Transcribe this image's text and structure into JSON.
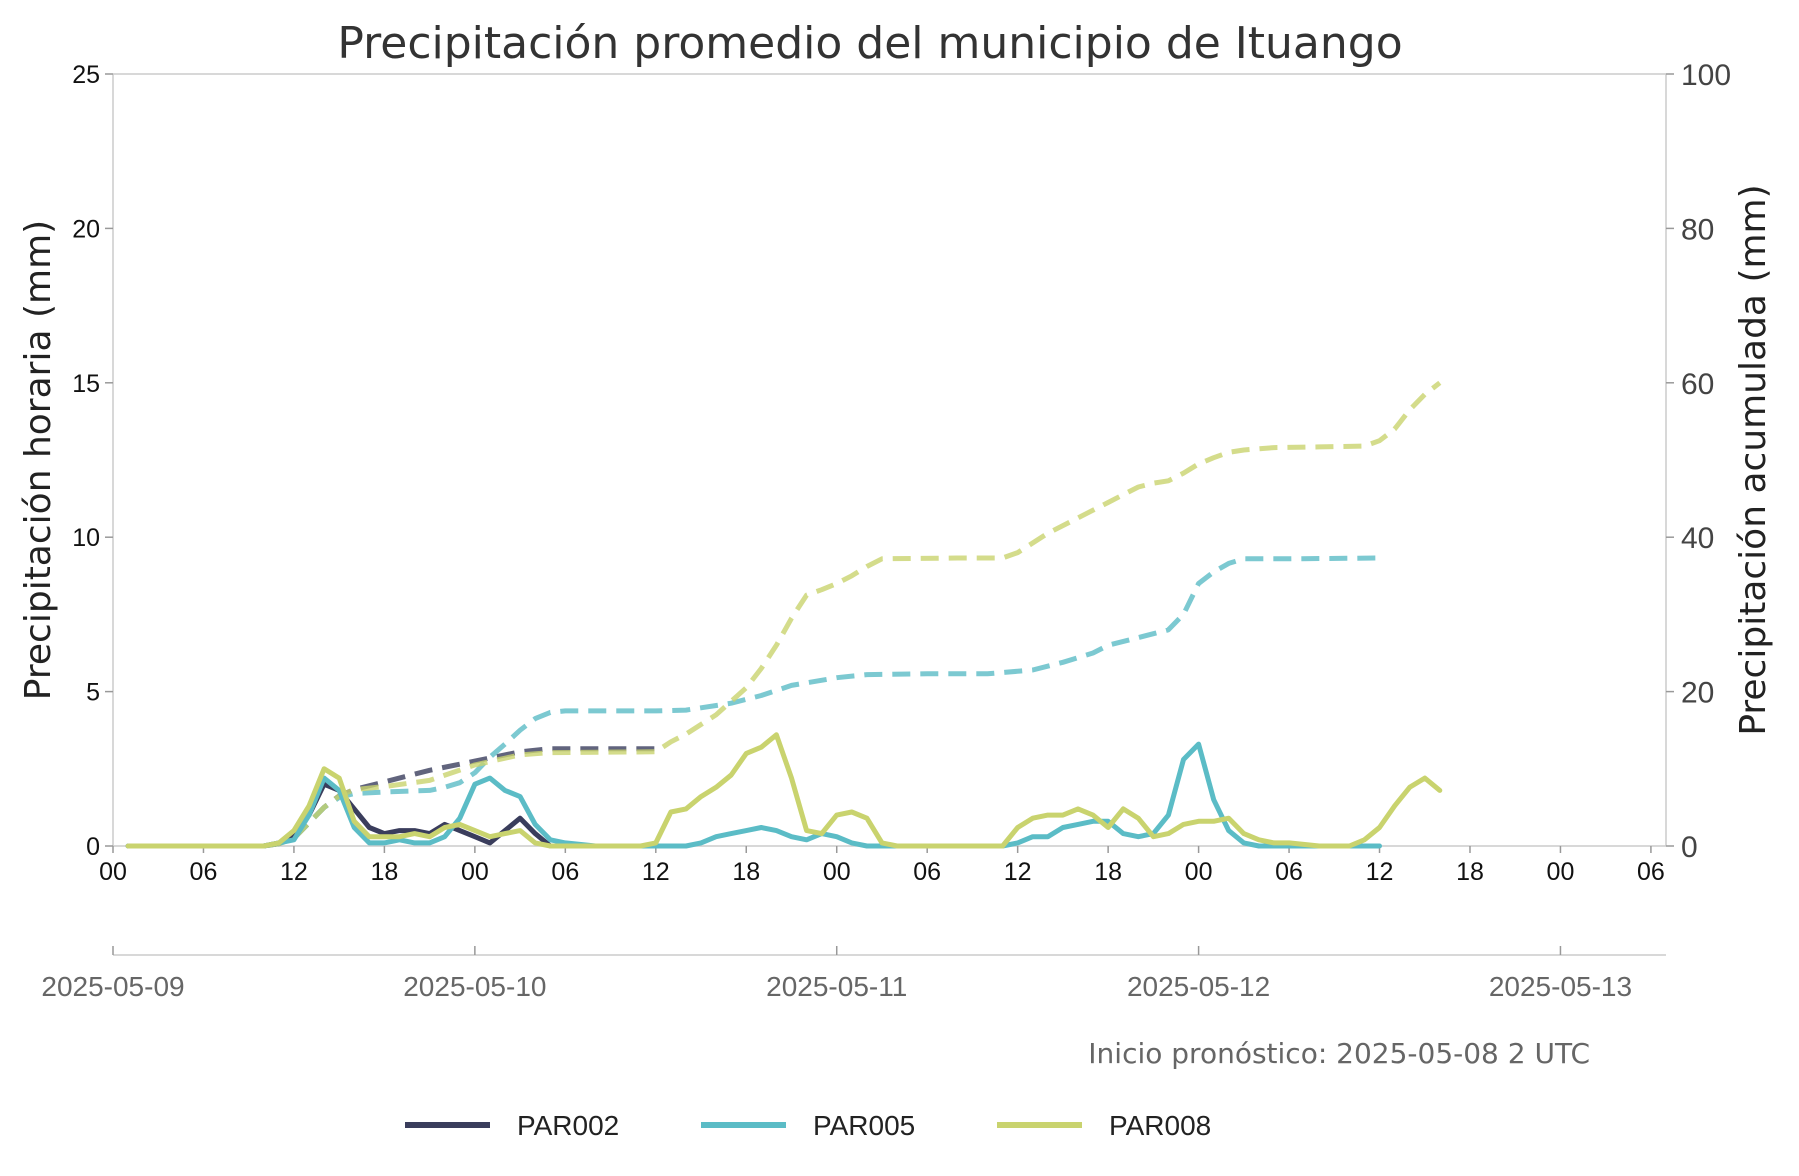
{
  "chart_data": {
    "type": "line",
    "title": "Precipitación promedio del municipio de Ituango",
    "ylabel_left": "Precipitación horaria (mm)",
    "ylabel_right": "Precipitación acumulada (mm)",
    "ylim_left": [
      0,
      25
    ],
    "ylim_right": [
      0,
      100
    ],
    "yticks_left": [
      "0",
      "5",
      "10",
      "15",
      "20",
      "25"
    ],
    "yticks_right": [
      "0",
      "20",
      "40",
      "60",
      "80",
      "100"
    ],
    "x_hour_ticks": [
      "00",
      "06",
      "12",
      "18",
      "00",
      "06",
      "12",
      "18",
      "00",
      "06",
      "12",
      "18",
      "00",
      "06",
      "12",
      "18",
      "00",
      "06"
    ],
    "x_date_ticks": [
      "2025-05-09",
      "2025-05-10",
      "2025-05-11",
      "2025-05-12",
      "2025-05-13"
    ],
    "xlim_hours": [
      0,
      103
    ],
    "x_unit": "hours since 2025-05-09 00",
    "annotation": "Inicio pronóstico: 2025-05-08 2 UTC",
    "grid": false,
    "legend_position": "bottom",
    "series": [
      {
        "name": "PAR002",
        "color": "#3a3d5c",
        "hourly": [
          [
            1,
            0
          ],
          [
            4,
            0
          ],
          [
            7,
            0
          ],
          [
            10,
            0
          ],
          [
            11,
            0.1
          ],
          [
            12,
            0.3
          ],
          [
            13,
            1
          ],
          [
            14,
            2
          ],
          [
            15,
            1.8
          ],
          [
            16,
            1.2
          ],
          [
            17,
            0.6
          ],
          [
            18,
            0.4
          ],
          [
            19,
            0.5
          ],
          [
            20,
            0.5
          ],
          [
            21,
            0.4
          ],
          [
            22,
            0.7
          ],
          [
            23,
            0.5
          ],
          [
            24,
            0.3
          ],
          [
            25,
            0.1
          ],
          [
            26,
            0.5
          ],
          [
            27,
            0.9
          ],
          [
            28,
            0.4
          ],
          [
            29,
            0
          ],
          [
            30,
            0
          ],
          [
            33,
            0
          ],
          [
            36,
            0
          ]
        ],
        "cumulative": [
          [
            1,
            0
          ],
          [
            10,
            0
          ],
          [
            11,
            0.3
          ],
          [
            12,
            1
          ],
          [
            13,
            3
          ],
          [
            14,
            5
          ],
          [
            15,
            6.5
          ],
          [
            16,
            7.3
          ],
          [
            18,
            8.3
          ],
          [
            21,
            9.8
          ],
          [
            24,
            11
          ],
          [
            27,
            12.2
          ],
          [
            29,
            12.6
          ],
          [
            36,
            12.6
          ]
        ]
      },
      {
        "name": "PAR005",
        "color": "#5bbcc6",
        "hourly": [
          [
            1,
            0
          ],
          [
            4,
            0
          ],
          [
            7,
            0
          ],
          [
            10,
            0
          ],
          [
            11,
            0.1
          ],
          [
            12,
            0.2
          ],
          [
            13,
            1
          ],
          [
            14,
            2.2
          ],
          [
            15,
            1.8
          ],
          [
            16,
            0.6
          ],
          [
            17,
            0.1
          ],
          [
            18,
            0.1
          ],
          [
            19,
            0.2
          ],
          [
            20,
            0.1
          ],
          [
            21,
            0.1
          ],
          [
            22,
            0.3
          ],
          [
            23,
            0.9
          ],
          [
            24,
            2
          ],
          [
            25,
            2.2
          ],
          [
            26,
            1.8
          ],
          [
            27,
            1.6
          ],
          [
            28,
            0.7
          ],
          [
            29,
            0.2
          ],
          [
            30,
            0.1
          ],
          [
            32,
            0
          ],
          [
            36,
            0
          ],
          [
            37,
            0
          ],
          [
            38,
            0
          ],
          [
            39,
            0.1
          ],
          [
            40,
            0.3
          ],
          [
            41,
            0.4
          ],
          [
            42,
            0.5
          ],
          [
            43,
            0.6
          ],
          [
            44,
            0.5
          ],
          [
            45,
            0.3
          ],
          [
            46,
            0.2
          ],
          [
            47,
            0.4
          ],
          [
            48,
            0.3
          ],
          [
            49,
            0.1
          ],
          [
            50,
            0
          ],
          [
            56,
            0
          ],
          [
            59,
            0
          ],
          [
            60,
            0.1
          ],
          [
            61,
            0.3
          ],
          [
            62,
            0.3
          ],
          [
            63,
            0.6
          ],
          [
            64,
            0.7
          ],
          [
            65,
            0.8
          ],
          [
            66,
            0.8
          ],
          [
            67,
            0.4
          ],
          [
            68,
            0.3
          ],
          [
            69,
            0.4
          ],
          [
            70,
            1
          ],
          [
            71,
            2.8
          ],
          [
            72,
            3.3
          ],
          [
            73,
            1.5
          ],
          [
            74,
            0.5
          ],
          [
            75,
            0.1
          ],
          [
            76,
            0
          ],
          [
            84,
            0
          ]
        ],
        "cumulative": [
          [
            1,
            0
          ],
          [
            10,
            0
          ],
          [
            11,
            0.3
          ],
          [
            12,
            1
          ],
          [
            13,
            3
          ],
          [
            14,
            5
          ],
          [
            15,
            6.3
          ],
          [
            16,
            6.8
          ],
          [
            18,
            7
          ],
          [
            21,
            7.2
          ],
          [
            22,
            7.6
          ],
          [
            23,
            8.2
          ],
          [
            24,
            9.5
          ],
          [
            25,
            11.5
          ],
          [
            26,
            13.2
          ],
          [
            27,
            15
          ],
          [
            28,
            16.5
          ],
          [
            29,
            17.3
          ],
          [
            30,
            17.5
          ],
          [
            36,
            17.5
          ],
          [
            38,
            17.6
          ],
          [
            41,
            18.5
          ],
          [
            43,
            19.5
          ],
          [
            45,
            20.8
          ],
          [
            48,
            21.8
          ],
          [
            50,
            22.2
          ],
          [
            54,
            22.3
          ],
          [
            58,
            22.3
          ],
          [
            61,
            22.8
          ],
          [
            63,
            23.8
          ],
          [
            65,
            25
          ],
          [
            66,
            26
          ],
          [
            68,
            27
          ],
          [
            70,
            28
          ],
          [
            71,
            30
          ],
          [
            72,
            34
          ],
          [
            73,
            35.5
          ],
          [
            74,
            36.6
          ],
          [
            75,
            37.2
          ],
          [
            78,
            37.2
          ],
          [
            84,
            37.3
          ]
        ]
      },
      {
        "name": "PAR008",
        "color": "#c9d36e",
        "hourly": [
          [
            1,
            0
          ],
          [
            4,
            0
          ],
          [
            7,
            0
          ],
          [
            10,
            0
          ],
          [
            11,
            0.1
          ],
          [
            12,
            0.5
          ],
          [
            13,
            1.3
          ],
          [
            14,
            2.5
          ],
          [
            15,
            2.2
          ],
          [
            16,
            0.8
          ],
          [
            17,
            0.3
          ],
          [
            18,
            0.3
          ],
          [
            19,
            0.3
          ],
          [
            20,
            0.4
          ],
          [
            21,
            0.3
          ],
          [
            22,
            0.6
          ],
          [
            23,
            0.7
          ],
          [
            24,
            0.5
          ],
          [
            25,
            0.3
          ],
          [
            26,
            0.4
          ],
          [
            27,
            0.5
          ],
          [
            28,
            0.1
          ],
          [
            29,
            0
          ],
          [
            30,
            0
          ],
          [
            33,
            0
          ],
          [
            35,
            0
          ],
          [
            36,
            0.1
          ],
          [
            37,
            1.1
          ],
          [
            38,
            1.2
          ],
          [
            39,
            1.6
          ],
          [
            40,
            1.9
          ],
          [
            41,
            2.3
          ],
          [
            42,
            3
          ],
          [
            43,
            3.2
          ],
          [
            44,
            3.6
          ],
          [
            45,
            2.2
          ],
          [
            46,
            0.5
          ],
          [
            47,
            0.4
          ],
          [
            48,
            1
          ],
          [
            49,
            1.1
          ],
          [
            50,
            0.9
          ],
          [
            51,
            0.1
          ],
          [
            52,
            0
          ],
          [
            56,
            0
          ],
          [
            59,
            0
          ],
          [
            60,
            0.6
          ],
          [
            61,
            0.9
          ],
          [
            62,
            1
          ],
          [
            63,
            1
          ],
          [
            64,
            1.2
          ],
          [
            65,
            1
          ],
          [
            66,
            0.6
          ],
          [
            67,
            1.2
          ],
          [
            68,
            0.9
          ],
          [
            69,
            0.3
          ],
          [
            70,
            0.4
          ],
          [
            71,
            0.7
          ],
          [
            72,
            0.8
          ],
          [
            73,
            0.8
          ],
          [
            74,
            0.9
          ],
          [
            75,
            0.4
          ],
          [
            76,
            0.2
          ],
          [
            77,
            0.1
          ],
          [
            78,
            0.1
          ],
          [
            80,
            0
          ],
          [
            82,
            0
          ],
          [
            83,
            0.2
          ],
          [
            84,
            0.6
          ],
          [
            85,
            1.3
          ],
          [
            86,
            1.9
          ],
          [
            87,
            2.2
          ],
          [
            88,
            1.8
          ]
        ],
        "cumulative": [
          [
            1,
            0
          ],
          [
            10,
            0
          ],
          [
            11,
            0.3
          ],
          [
            12,
            1
          ],
          [
            13,
            3
          ],
          [
            14,
            5
          ],
          [
            15,
            6.5
          ],
          [
            16,
            7.3
          ],
          [
            18,
            7.7
          ],
          [
            21,
            8.5
          ],
          [
            24,
            10.5
          ],
          [
            27,
            11.8
          ],
          [
            29,
            12.1
          ],
          [
            36,
            12.2
          ],
          [
            37,
            13.5
          ],
          [
            38,
            14.5
          ],
          [
            40,
            17
          ],
          [
            42,
            20.5
          ],
          [
            43,
            23
          ],
          [
            44,
            26
          ],
          [
            45,
            29.5
          ],
          [
            46,
            32.5
          ],
          [
            47,
            33.2
          ],
          [
            48,
            34
          ],
          [
            49,
            35
          ],
          [
            50,
            36.2
          ],
          [
            51,
            37.2
          ],
          [
            56,
            37.3
          ],
          [
            59,
            37.3
          ],
          [
            60,
            38
          ],
          [
            62,
            40.5
          ],
          [
            64,
            42.5
          ],
          [
            65,
            43.5
          ],
          [
            66,
            44.5
          ],
          [
            67,
            45.5
          ],
          [
            68,
            46.5
          ],
          [
            69,
            47
          ],
          [
            70,
            47.3
          ],
          [
            71,
            48.3
          ],
          [
            72,
            49.5
          ],
          [
            73,
            50.3
          ],
          [
            74,
            51
          ],
          [
            75,
            51.3
          ],
          [
            77,
            51.6
          ],
          [
            80,
            51.7
          ],
          [
            83,
            51.8
          ],
          [
            84,
            52.5
          ],
          [
            85,
            54
          ],
          [
            86,
            56.5
          ],
          [
            87,
            58.5
          ],
          [
            88,
            60
          ]
        ]
      }
    ]
  }
}
